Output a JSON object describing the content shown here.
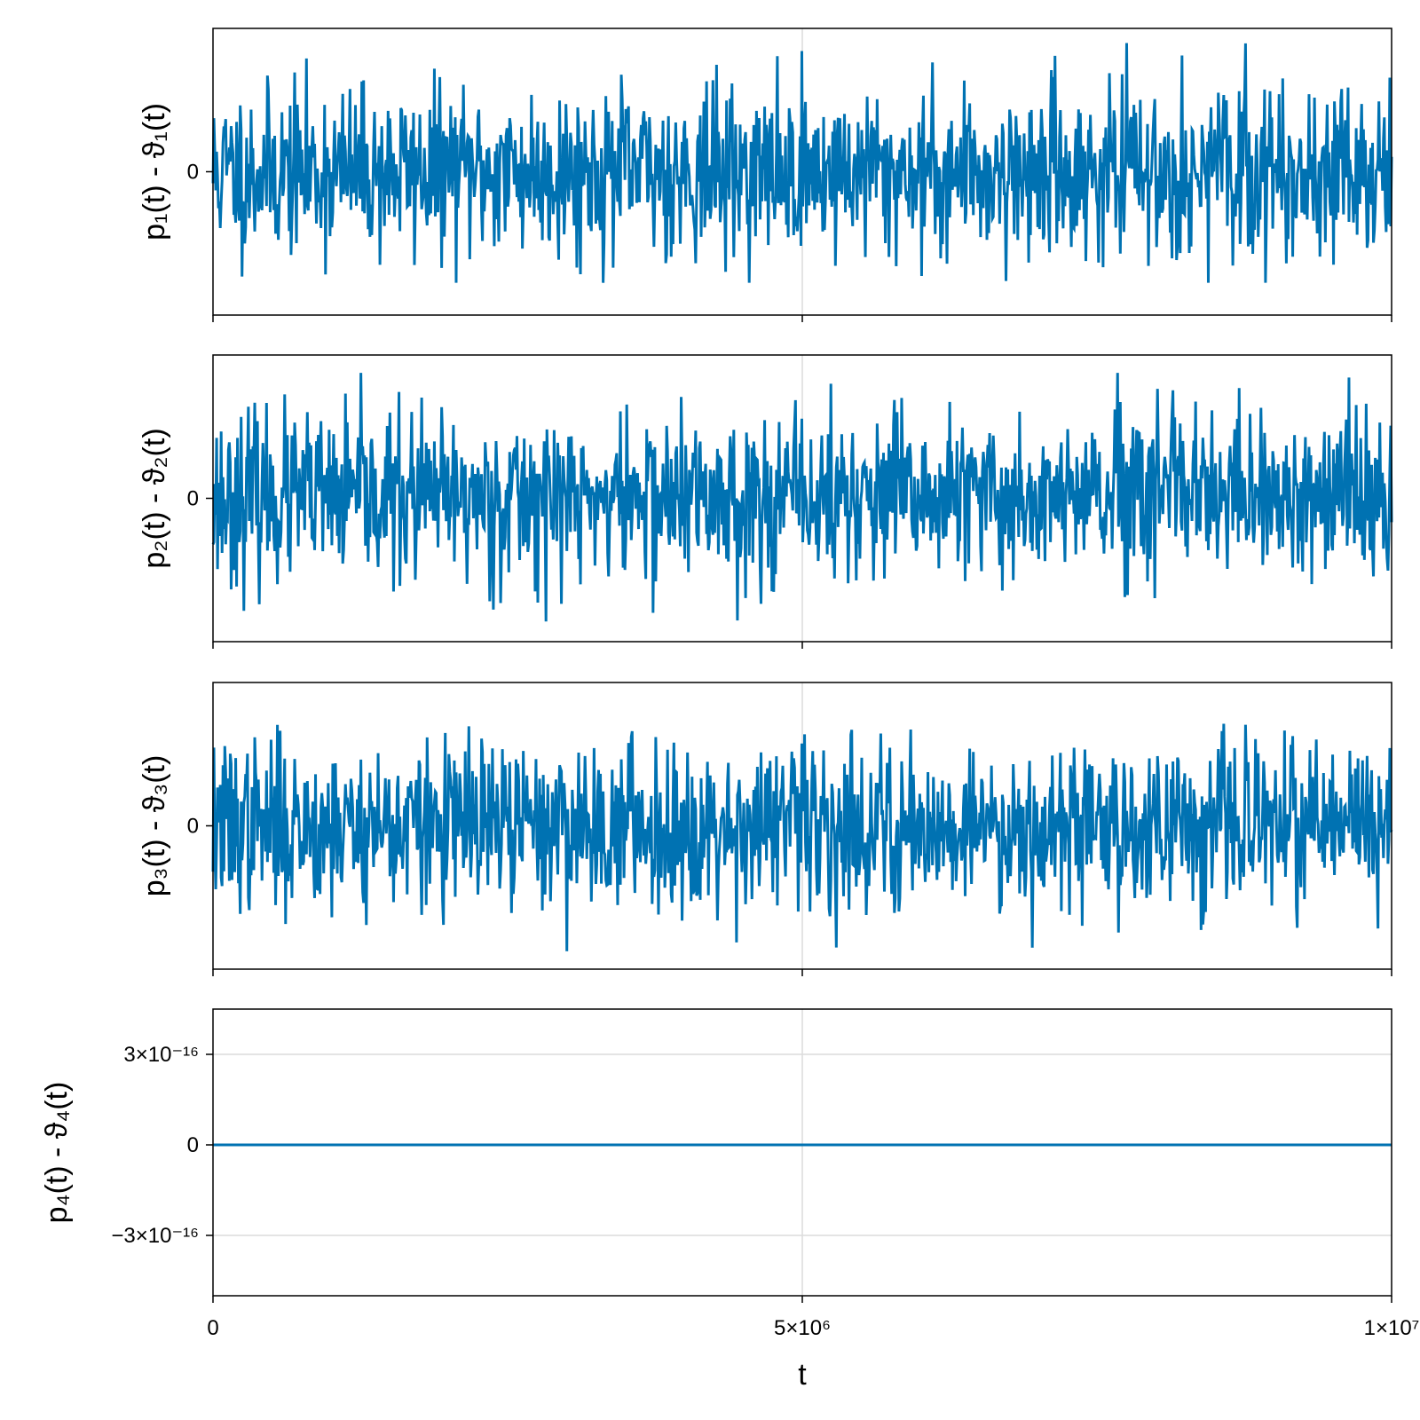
{
  "chart_data": [
    {
      "type": "line",
      "ylabel": "p₁(t) - ϑ₁(t)",
      "xlabel": "",
      "x_range": [
        0,
        10000000
      ],
      "y_ticks": [
        {
          "value": 0,
          "label": "0"
        }
      ],
      "series": [
        {
          "color": "#0072b2",
          "amplitude": 1.0,
          "clip": [
            -1.55,
            1.8
          ],
          "seed": 11
        }
      ],
      "x_grid": [
        5000000
      ],
      "y_grid": []
    },
    {
      "type": "line",
      "ylabel": "p₂(t) - ϑ₂(t)",
      "xlabel": "",
      "x_range": [
        0,
        10000000
      ],
      "y_ticks": [
        {
          "value": 0,
          "label": "0"
        }
      ],
      "series": [
        {
          "color": "#0072b2",
          "amplitude": 1.0,
          "clip": [
            -1.8,
            1.75
          ],
          "seed": 23
        }
      ],
      "x_grid": [
        5000000
      ],
      "y_grid": []
    },
    {
      "type": "line",
      "ylabel": "p₃(t) - ϑ₃(t)",
      "xlabel": "",
      "x_range": [
        0,
        10000000
      ],
      "y_ticks": [
        {
          "value": 0,
          "label": "0"
        }
      ],
      "series": [
        {
          "color": "#0072b2",
          "amplitude": 1.0,
          "clip": [
            -1.75,
            1.75
          ],
          "seed": 37
        }
      ],
      "x_grid": [
        5000000
      ],
      "y_grid": []
    },
    {
      "type": "line",
      "ylabel": "p₄(t) - ϑ₄(t)",
      "xlabel": "t",
      "x_range": [
        0,
        10000000
      ],
      "y_range": [
        -5e-16,
        4.5e-16
      ],
      "y_ticks": [
        {
          "value": 3e-16,
          "label": "3×10⁻¹⁶"
        },
        {
          "value": 0,
          "label": "0"
        },
        {
          "value": -3e-16,
          "label": "−3×10⁻¹⁶"
        }
      ],
      "x_ticks": [
        {
          "value": 0,
          "label": "0"
        },
        {
          "value": 5000000,
          "label": "5×10⁶"
        },
        {
          "value": 10000000,
          "label": "1×10⁷"
        }
      ],
      "series": [
        {
          "color": "#0072b2",
          "amplitude": 1.6e-16,
          "clip": [
            -4.5e-16,
            4.1e-16
          ],
          "seed": 53
        }
      ],
      "x_grid": [
        5000000
      ],
      "y_grid": [
        3e-16,
        0,
        -3e-16
      ]
    }
  ]
}
